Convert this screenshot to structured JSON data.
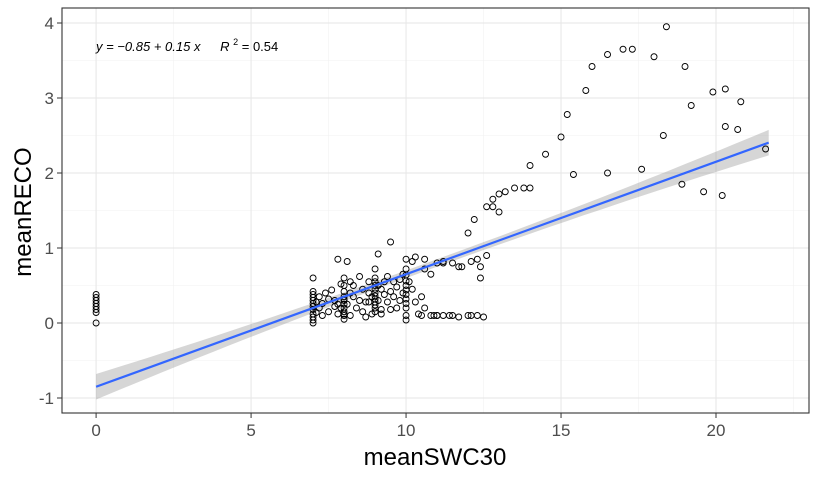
{
  "chart_data": {
    "type": "scatter",
    "xlabel": "meanSWC30",
    "ylabel": "meanRECO",
    "xlim": [
      -1.1,
      23.0
    ],
    "ylim": [
      -1.2,
      4.2
    ],
    "xticks": [
      0,
      5,
      10,
      15,
      20
    ],
    "yticks": [
      -1,
      0,
      1,
      2,
      3,
      4
    ],
    "xtick_labels": [
      "0",
      "5",
      "10",
      "15",
      "20"
    ],
    "ytick_labels": [
      "-1",
      "0",
      "1",
      "2",
      "3",
      "4"
    ],
    "grid": true,
    "legend": "none",
    "annotation": {
      "equation_prefix": "y = −0.85 + 0.15 x",
      "r2_label": "R",
      "r2_exp": "2",
      "r2_value": " = 0.54"
    },
    "regression": {
      "intercept": -0.85,
      "slope": 0.15,
      "x_range": [
        0,
        21.7
      ],
      "band_halfwidth_ends": 0.17,
      "band_halfwidth_center": 0.05,
      "color": "#3366ff"
    },
    "points": {
      "x": [
        0,
        0,
        0,
        0,
        0,
        0,
        0,
        0,
        7,
        7,
        7,
        7,
        7,
        7,
        7,
        7,
        7,
        7,
        7,
        7,
        7.1,
        7.1,
        7.2,
        7.2,
        7.3,
        7.3,
        7.4,
        7.5,
        7.5,
        7.6,
        7.7,
        7.7,
        7.8,
        7.8,
        7.9,
        7.9,
        8,
        8,
        8,
        8,
        8,
        8,
        8,
        8,
        8,
        8,
        8,
        8,
        8.1,
        8.1,
        8.2,
        8.2,
        8.2,
        8.3,
        8.3,
        8.4,
        8.5,
        8.5,
        8.6,
        8.6,
        8.7,
        8.7,
        8.8,
        8.8,
        8.9,
        8.9,
        9,
        9,
        9,
        9,
        9,
        9,
        9,
        9,
        9,
        9,
        9,
        9,
        9.1,
        9.1,
        9.1,
        9.2,
        9.2,
        9.3,
        9.3,
        9.4,
        9.4,
        9.5,
        9.5,
        9.6,
        9.6,
        9.7,
        9.7,
        9.8,
        9.8,
        9.9,
        9.9,
        10,
        10,
        10,
        10,
        10,
        10,
        10,
        10,
        10,
        10,
        10,
        10,
        10.1,
        10.2,
        10.3,
        10.4,
        10.5,
        10.6,
        10.8,
        10.9,
        11,
        11.2,
        11.4,
        11.5,
        11.7,
        12,
        12.1,
        12.3,
        12.5,
        10.3,
        10.6,
        10.8,
        11,
        11.2,
        11.5,
        11.8,
        12.1,
        12.3,
        12.4,
        12.6,
        12.8,
        13,
        13.2,
        13.5,
        13.8,
        14,
        14.5,
        15,
        15.2,
        15.8,
        16,
        16.5,
        17,
        17.3,
        18,
        18.4,
        19,
        19.2,
        19.9,
        20.3,
        20.8,
        9.5,
        10.2,
        10.6,
        11.2,
        11.7,
        12,
        12.2,
        12.6,
        12.8,
        13,
        14,
        15.4,
        16.5,
        17.6,
        18.3,
        18.9,
        19.6,
        20.2,
        20.3,
        20.7,
        21.6,
        12.4,
        11,
        10.5,
        8.8,
        7.8,
        9.2
      ],
      "y": [
        0.38,
        0.34,
        0.3,
        0.26,
        0.22,
        0.18,
        0.14,
        0.0,
        0.6,
        0.42,
        0.38,
        0.34,
        0.3,
        0.26,
        0.22,
        0.18,
        0.12,
        0.08,
        0.04,
        0.0,
        0.28,
        0.14,
        0.35,
        0.2,
        0.26,
        0.1,
        0.4,
        0.32,
        0.15,
        0.44,
        0.22,
        0.3,
        0.85,
        0.12,
        0.52,
        0.2,
        0.6,
        0.5,
        0.42,
        0.35,
        0.3,
        0.25,
        0.2,
        0.15,
        0.1,
        0.05,
        0.32,
        0.12,
        0.82,
        0.25,
        0.4,
        0.1,
        0.55,
        0.35,
        0.5,
        0.2,
        0.62,
        0.3,
        0.15,
        0.45,
        0.08,
        0.28,
        0.4,
        0.55,
        0.12,
        0.35,
        0.72,
        0.6,
        0.55,
        0.5,
        0.45,
        0.4,
        0.36,
        0.32,
        0.28,
        0.24,
        0.2,
        0.15,
        0.92,
        0.3,
        0.5,
        0.45,
        0.12,
        0.38,
        0.55,
        0.28,
        0.62,
        0.18,
        0.42,
        0.35,
        0.55,
        0.2,
        0.48,
        0.3,
        0.58,
        0.4,
        0.65,
        0.85,
        0.72,
        0.64,
        0.56,
        0.5,
        0.44,
        0.38,
        0.32,
        0.26,
        0.2,
        0.1,
        0.04,
        0.55,
        0.45,
        0.28,
        0.12,
        0.35,
        0.2,
        0.1,
        0.1,
        0.1,
        0.1,
        0.1,
        0.1,
        0.08,
        0.1,
        0.1,
        0.1,
        0.08,
        0.88,
        0.72,
        0.65,
        0.8,
        0.8,
        0.8,
        0.75,
        0.82,
        0.85,
        0.75,
        0.9,
        1.55,
        1.72,
        1.75,
        1.8,
        1.8,
        2.1,
        2.25,
        2.48,
        2.78,
        3.1,
        3.42,
        3.58,
        3.65,
        3.65,
        3.55,
        3.95,
        3.42,
        2.9,
        3.08,
        3.12,
        2.95,
        1.08,
        0.82,
        0.85,
        0.82,
        0.75,
        1.2,
        1.38,
        1.55,
        1.65,
        1.48,
        1.8,
        1.98,
        2.0,
        2.05,
        2.5,
        1.85,
        1.75,
        1.7,
        2.62,
        2.58,
        2.32,
        0.6,
        0.1,
        0.1,
        0.28,
        0.25,
        0.18
      ]
    }
  }
}
